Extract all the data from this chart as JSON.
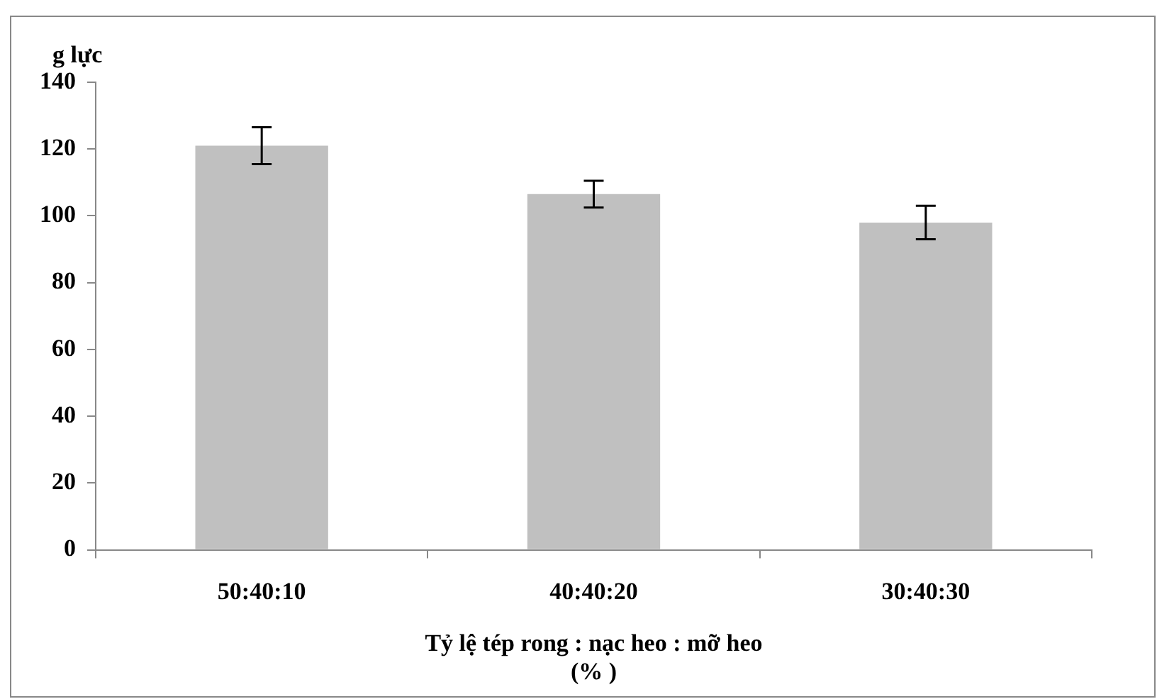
{
  "chart_data": {
    "type": "bar",
    "ylabel": "g lực",
    "xlabel": "Tỷ lệ tép rong : nạc heo : mỡ heo\n(% )",
    "categories": [
      "50:40:10",
      "40:40:20",
      "30:40:30"
    ],
    "values": [
      121,
      106.5,
      98
    ],
    "errors": [
      5.5,
      4,
      5
    ],
    "color": "#c0c0c0",
    "ylim": [
      0,
      140
    ],
    "yticks": [
      0,
      20,
      40,
      60,
      80,
      100,
      120,
      140
    ],
    "grid": false,
    "legend": false
  }
}
